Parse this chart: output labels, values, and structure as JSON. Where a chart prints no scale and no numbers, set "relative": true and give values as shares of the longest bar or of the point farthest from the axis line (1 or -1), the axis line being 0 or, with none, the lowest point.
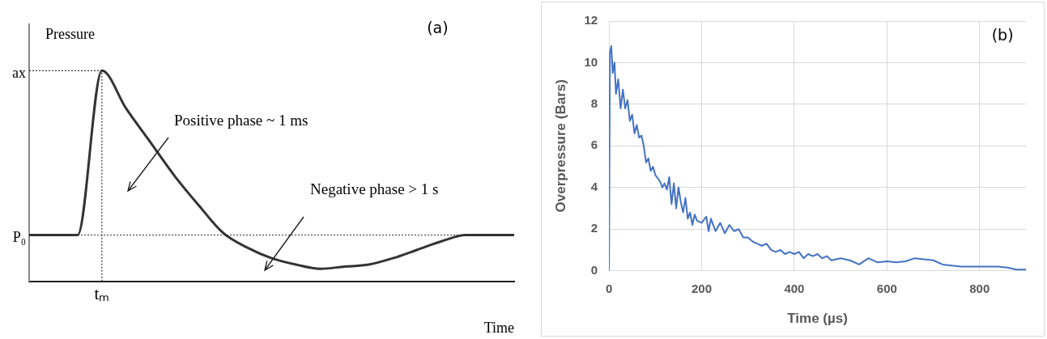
{
  "chart_data": [
    {
      "type": "line",
      "relative": true,
      "color": "#333333",
      "xlabel": "Time",
      "ylabel": "Pressure",
      "categories": [
        null,
        null,
        null,
        null,
        null,
        null,
        null,
        null,
        null,
        null,
        null,
        null,
        null,
        null,
        null,
        null,
        null,
        null,
        null,
        null,
        null
      ],
      "values": [
        0.22,
        0.22,
        0.22,
        1,
        0.82,
        0.66,
        0.5,
        0.36,
        0.23,
        0.16,
        0.11,
        0.08,
        0.06,
        0.07,
        0.08,
        0.11,
        0.15,
        0.19,
        0.22,
        0.22,
        0.22
      ],
      "ref_lines": [
        {
          "axis": "y",
          "value": 0.22,
          "label": "P₀",
          "line_style": "dotted"
        },
        {
          "axis": "y",
          "value": 1,
          "label": "ax",
          "line_style": "dotted"
        }
      ],
      "annotations": [
        "(a)",
        "Positive phase ~ 1 ms",
        "Negative phase > 1 s",
        "tₘ"
      ]
    },
    {
      "type": "line",
      "color": "#4472c4",
      "xlabel": "Time (µs)",
      "ylabel": "Overpressure (Bars)",
      "grid": true,
      "xlim": [
        0,
        900
      ],
      "xticks": [
        0,
        200,
        400,
        600,
        800
      ],
      "ylim": [
        0,
        12
      ],
      "yticks": [
        0,
        2,
        4,
        6,
        8,
        10,
        12
      ],
      "x": [
        0,
        2,
        5,
        8,
        12,
        15,
        20,
        25,
        30,
        35,
        40,
        45,
        50,
        55,
        60,
        65,
        70,
        75,
        80,
        85,
        90,
        95,
        100,
        110,
        115,
        120,
        125,
        130,
        135,
        140,
        145,
        150,
        155,
        160,
        165,
        170,
        175,
        180,
        185,
        190,
        200,
        210,
        215,
        220,
        230,
        240,
        250,
        260,
        270,
        280,
        290,
        300,
        310,
        320,
        330,
        340,
        350,
        360,
        370,
        380,
        390,
        400,
        410,
        420,
        430,
        440,
        450,
        460,
        470,
        480,
        500,
        520,
        540,
        560,
        580,
        600,
        620,
        640,
        660,
        680,
        700,
        720,
        740,
        760,
        780,
        800,
        820,
        840,
        860,
        880,
        900
      ],
      "values": [
        0,
        10.5,
        10.8,
        9.5,
        10,
        8.5,
        9.2,
        7.8,
        8.7,
        7.8,
        8.2,
        7.2,
        7.5,
        6.6,
        7,
        6.4,
        6.5,
        6,
        5.2,
        5.4,
        4.8,
        5,
        4.6,
        4.3,
        4,
        4.2,
        3.9,
        4.5,
        3.2,
        4.2,
        3,
        4,
        3.3,
        2.8,
        3.5,
        2.5,
        2.8,
        2.2,
        2.7,
        2.4,
        2.3,
        2.6,
        1.9,
        2.5,
        1.9,
        2.3,
        1.8,
        2.2,
        1.9,
        2,
        1.6,
        1.6,
        1.4,
        1.3,
        1.2,
        1.3,
        1,
        0.9,
        1,
        0.8,
        0.9,
        0.8,
        0.9,
        0.6,
        0.8,
        0.7,
        0.8,
        0.6,
        0.7,
        0.5,
        0.6,
        0.5,
        0.3,
        0.6,
        0.4,
        0.45,
        0.4,
        0.45,
        0.6,
        0.55,
        0.5,
        0.3,
        0.25,
        0.2,
        0.2,
        0.2,
        0.2,
        0.2,
        0.15,
        0.05,
        0.05
      ],
      "annotations": [
        "(b)"
      ]
    }
  ]
}
